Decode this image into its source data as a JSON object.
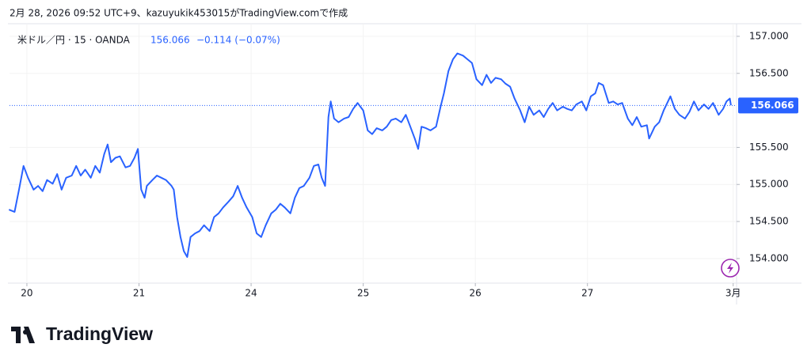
{
  "chart_data": {
    "type": "line",
    "caption": "2月 28, 2026 09:52 UTC+9、kazuyukik453015がTradingView.comで作成",
    "symbol": "米ドル／円 · 15 · OANDA",
    "last_price": 156.066,
    "change": "−0.114 (−0.07%)",
    "brand": "TradingView",
    "color": "#2962ff",
    "grid": true,
    "x": [
      -0.16,
      -0.11,
      -0.07,
      -0.03,
      0.01,
      0.06,
      0.1,
      0.14,
      0.18,
      0.23,
      0.27,
      0.31,
      0.35,
      0.4,
      0.44,
      0.48,
      0.52,
      0.57,
      0.61,
      0.65,
      0.69,
      0.72,
      0.75,
      0.79,
      0.83,
      0.88,
      0.92,
      0.96,
      0.99,
      1.02,
      1.05,
      1.07,
      1.12,
      1.16,
      1.2,
      1.24,
      1.29,
      1.31,
      1.34,
      1.37,
      1.4,
      1.43,
      1.46,
      1.5,
      1.54,
      1.58,
      1.63,
      1.67,
      1.71,
      1.75,
      1.8,
      1.84,
      1.88,
      1.92,
      1.96,
      2.01,
      2.05,
      2.09,
      2.13,
      2.18,
      2.22,
      2.26,
      2.3,
      2.35,
      2.39,
      2.43,
      2.47,
      2.52,
      2.56,
      2.6,
      2.63,
      2.66,
      2.69,
      2.71,
      2.74,
      2.78,
      2.83,
      2.87,
      2.91,
      2.95,
      3.0,
      3.04,
      3.08,
      3.12,
      3.17,
      3.21,
      3.25,
      3.29,
      3.34,
      3.38,
      3.42,
      3.46,
      3.49,
      3.52,
      3.56,
      3.6,
      3.65,
      3.69,
      3.72,
      3.76,
      3.8,
      3.84,
      3.89,
      3.93,
      3.97,
      4.01,
      4.06,
      4.1,
      4.14,
      4.18,
      4.23,
      4.27,
      4.31,
      4.35,
      4.4,
      4.44,
      4.48,
      4.52,
      4.57,
      4.61,
      4.65,
      4.69,
      4.73,
      4.78,
      4.82,
      4.86,
      4.9,
      4.95,
      4.99,
      5.03,
      5.07,
      5.1,
      5.14,
      5.19,
      5.23,
      5.27,
      5.31,
      5.36,
      5.4,
      5.44,
      5.48,
      5.53,
      5.55,
      5.6,
      5.64,
      5.68,
      5.74,
      5.78,
      5.82,
      5.87,
      5.91,
      5.95,
      5.99,
      6.04,
      6.08,
      6.12,
      6.17,
      6.21,
      6.24,
      6.27,
      6.28
    ],
    "values": [
      154.66,
      154.63,
      154.93,
      155.25,
      155.09,
      154.93,
      154.98,
      154.91,
      155.06,
      155.01,
      155.14,
      154.93,
      155.09,
      155.12,
      155.25,
      155.12,
      155.2,
      155.09,
      155.25,
      155.16,
      155.41,
      155.54,
      155.3,
      155.36,
      155.38,
      155.23,
      155.25,
      155.36,
      155.48,
      154.93,
      154.82,
      154.98,
      155.06,
      155.12,
      155.09,
      155.06,
      154.98,
      154.93,
      154.56,
      154.29,
      154.1,
      154.02,
      154.29,
      154.34,
      154.37,
      154.45,
      154.37,
      154.56,
      154.61,
      154.69,
      154.77,
      154.84,
      154.98,
      154.82,
      154.69,
      154.56,
      154.34,
      154.29,
      154.45,
      154.61,
      154.66,
      154.74,
      154.69,
      154.61,
      154.82,
      154.95,
      154.98,
      155.09,
      155.25,
      155.27,
      155.09,
      154.98,
      155.91,
      156.12,
      155.89,
      155.84,
      155.89,
      155.91,
      156.02,
      156.1,
      156.0,
      155.73,
      155.68,
      155.76,
      155.73,
      155.78,
      155.87,
      155.89,
      155.84,
      155.94,
      155.78,
      155.62,
      155.48,
      155.78,
      155.76,
      155.73,
      155.78,
      156.05,
      156.23,
      156.53,
      156.69,
      156.77,
      156.74,
      156.69,
      156.64,
      156.42,
      156.34,
      156.48,
      156.37,
      156.44,
      156.42,
      156.36,
      156.32,
      156.16,
      156.0,
      155.84,
      156.05,
      155.94,
      156.0,
      155.91,
      156.02,
      156.1,
      156.0,
      156.05,
      156.02,
      156.0,
      156.08,
      156.12,
      156.0,
      156.19,
      156.23,
      156.37,
      156.34,
      156.1,
      156.12,
      156.08,
      156.1,
      155.89,
      155.8,
      155.91,
      155.78,
      155.8,
      155.62,
      155.78,
      155.84,
      156.0,
      156.19,
      156.02,
      155.94,
      155.89,
      155.98,
      156.12,
      156.0,
      156.08,
      156.02,
      156.1,
      155.94,
      156.02,
      156.12,
      156.16,
      156.07
    ],
    "xlim": [
      -0.155,
      6.33
    ],
    "xticks": [
      {
        "value": 0,
        "label": "20"
      },
      {
        "value": 1,
        "label": "21"
      },
      {
        "value": 2,
        "label": "24"
      },
      {
        "value": 3,
        "label": "25"
      },
      {
        "value": 4,
        "label": "26"
      },
      {
        "value": 5,
        "label": "27"
      },
      {
        "value": 6.3,
        "label": "3月"
      }
    ],
    "ylim": [
      153.7,
      157.17
    ],
    "yticks": [
      {
        "value": 154,
        "label": "154.000"
      },
      {
        "value": 154.5,
        "label": "154.500"
      },
      {
        "value": 155,
        "label": "155.000"
      },
      {
        "value": 155.5,
        "label": "155.500"
      },
      {
        "value": 156.5,
        "label": "156.500"
      },
      {
        "value": 157,
        "label": "157.000"
      }
    ]
  }
}
